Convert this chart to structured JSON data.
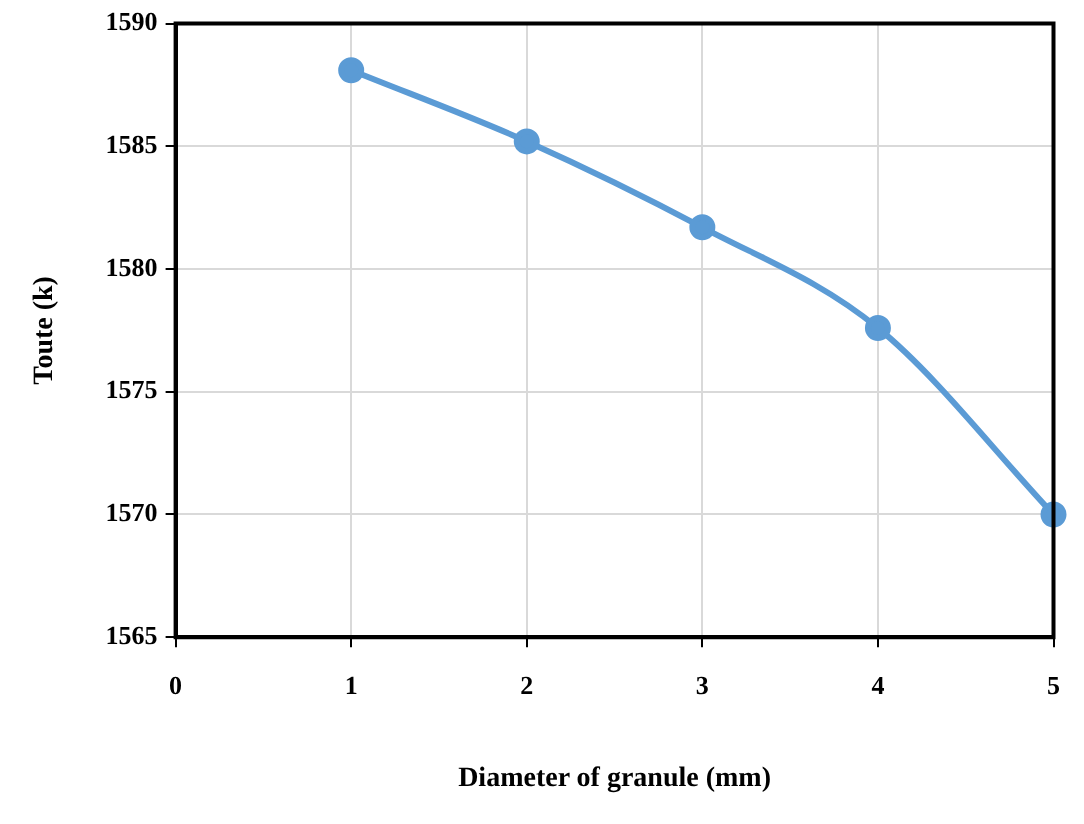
{
  "chart_data": {
    "type": "line",
    "xlabel": "Diameter of granule (mm)",
    "ylabel": "Toute (k)",
    "x": [
      1,
      2,
      3,
      4,
      5
    ],
    "series": [
      {
        "color": "#5b9bd5",
        "values": [
          1588.1,
          1585.2,
          1581.7,
          1577.6,
          1570.0
        ]
      }
    ],
    "xlim": [
      0,
      5
    ],
    "xticks": [
      0,
      1,
      2,
      3,
      4,
      5
    ],
    "ylim": [
      1565,
      1590
    ],
    "yticks": [
      1565,
      1570,
      1575,
      1580,
      1585,
      1590
    ],
    "grid": true,
    "legend": false,
    "marker": "circle",
    "line_style": "solid"
  }
}
